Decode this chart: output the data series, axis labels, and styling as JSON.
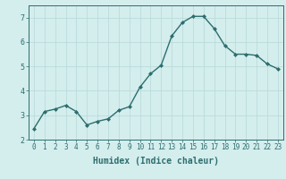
{
  "x": [
    0,
    1,
    2,
    3,
    4,
    5,
    6,
    7,
    8,
    9,
    10,
    11,
    12,
    13,
    14,
    15,
    16,
    17,
    18,
    19,
    20,
    21,
    22,
    23
  ],
  "y": [
    2.45,
    3.15,
    3.25,
    3.4,
    3.15,
    2.6,
    2.75,
    2.85,
    3.2,
    3.35,
    4.15,
    4.7,
    5.05,
    6.25,
    6.8,
    7.05,
    7.05,
    6.55,
    5.85,
    5.5,
    5.5,
    5.45,
    5.1,
    4.9
  ],
  "line_color": "#2d6e6e",
  "marker": "D",
  "marker_size": 2.0,
  "linewidth": 1.0,
  "xlabel": "Humidex (Indice chaleur)",
  "xlabel_fontsize": 7,
  "xlim": [
    -0.5,
    23.5
  ],
  "ylim": [
    2,
    7.5
  ],
  "yticks": [
    2,
    3,
    4,
    5,
    6,
    7
  ],
  "xticks": [
    0,
    1,
    2,
    3,
    4,
    5,
    6,
    7,
    8,
    9,
    10,
    11,
    12,
    13,
    14,
    15,
    16,
    17,
    18,
    19,
    20,
    21,
    22,
    23
  ],
  "bg_color": "#d4eded",
  "grid_color": "#b8d8d8",
  "tick_color": "#2d6e6e",
  "label_color": "#2d6e6e",
  "tick_fontsize": 5.5,
  "ytick_fontsize": 6.0
}
